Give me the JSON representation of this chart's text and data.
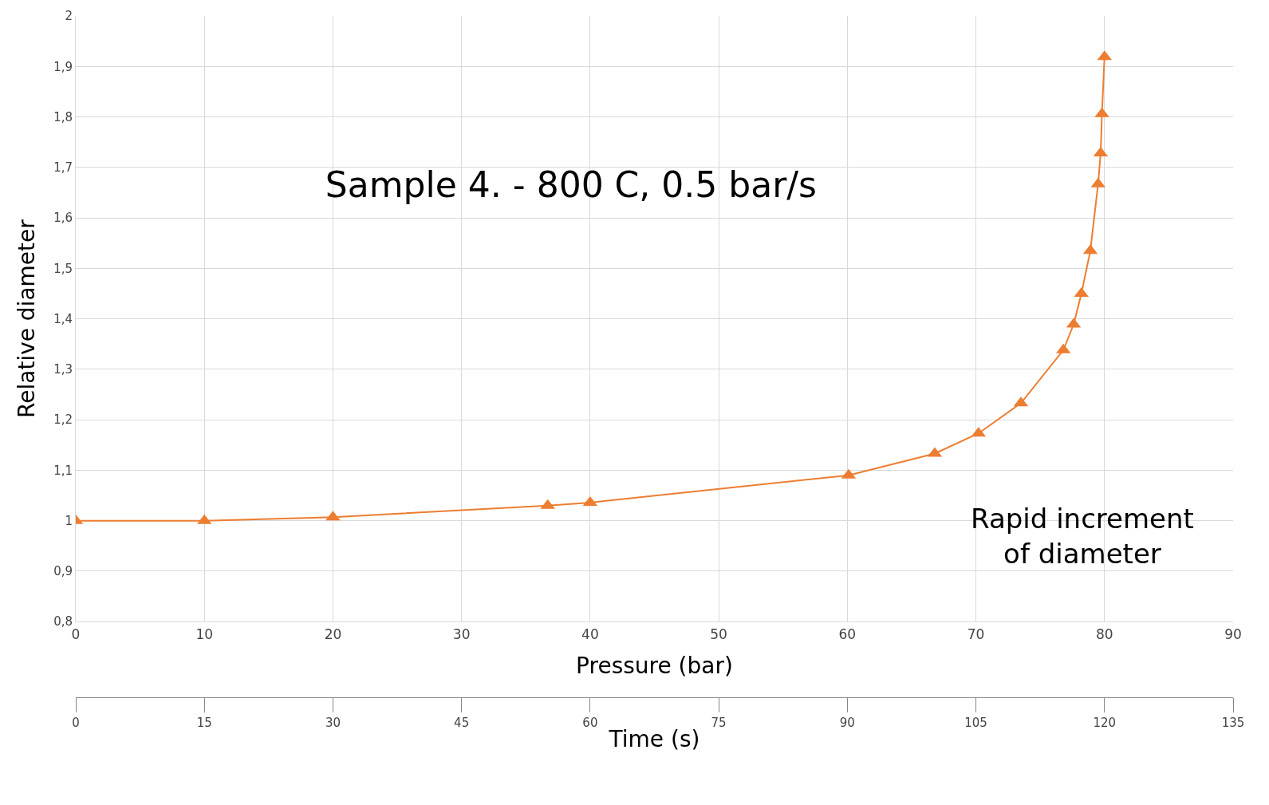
{
  "chart_data": {
    "type": "line",
    "title": "Sample 4. - 800 C, 0.5 bar/s",
    "xlabel": "Pressure (bar)",
    "ylabel": "Relative diameter",
    "x2label": "Time (s)",
    "x": [
      0,
      10,
      20,
      36.7,
      40,
      60.1,
      66.8,
      70.2,
      73.5,
      76.8,
      77.6,
      78.2,
      78.9,
      79.5,
      79.7,
      79.8,
      80
    ],
    "series": [
      {
        "color": "#ed7d31",
        "values": [
          1.0,
          1.0,
          1.007,
          1.03,
          1.036,
          1.09,
          1.133,
          1.173,
          1.233,
          1.338,
          1.389,
          1.45,
          1.535,
          1.667,
          1.728,
          1.806,
          1.919
        ]
      }
    ],
    "xlim": [
      0,
      90
    ],
    "xticks": [
      0,
      10,
      20,
      30,
      40,
      50,
      60,
      70,
      80,
      90
    ],
    "x2lim": [
      0,
      135
    ],
    "x2ticks": [
      0,
      15,
      30,
      45,
      60,
      75,
      90,
      105,
      120,
      135
    ],
    "ylim": [
      0.8,
      2
    ],
    "yticks": [
      {
        "value": 0.8,
        "label": "0,8"
      },
      {
        "value": 0.9,
        "label": "0,9"
      },
      1,
      {
        "value": 1.1,
        "label": "1,1"
      },
      {
        "value": 1.2,
        "label": "1,2"
      },
      {
        "value": 1.3,
        "label": "1,3"
      },
      {
        "value": 1.4,
        "label": "1,4"
      },
      {
        "value": 1.5,
        "label": "1,5"
      },
      {
        "value": 1.6,
        "label": "1,6"
      },
      {
        "value": 1.7,
        "label": "1,7"
      },
      {
        "value": 1.8,
        "label": "1,8"
      },
      {
        "value": 1.9,
        "label": "1,9"
      },
      2
    ],
    "annotations": [
      "Rapid increment\nof diameter"
    ],
    "grid": true,
    "legend": false,
    "marker": "triangle",
    "line_style": "solid"
  }
}
